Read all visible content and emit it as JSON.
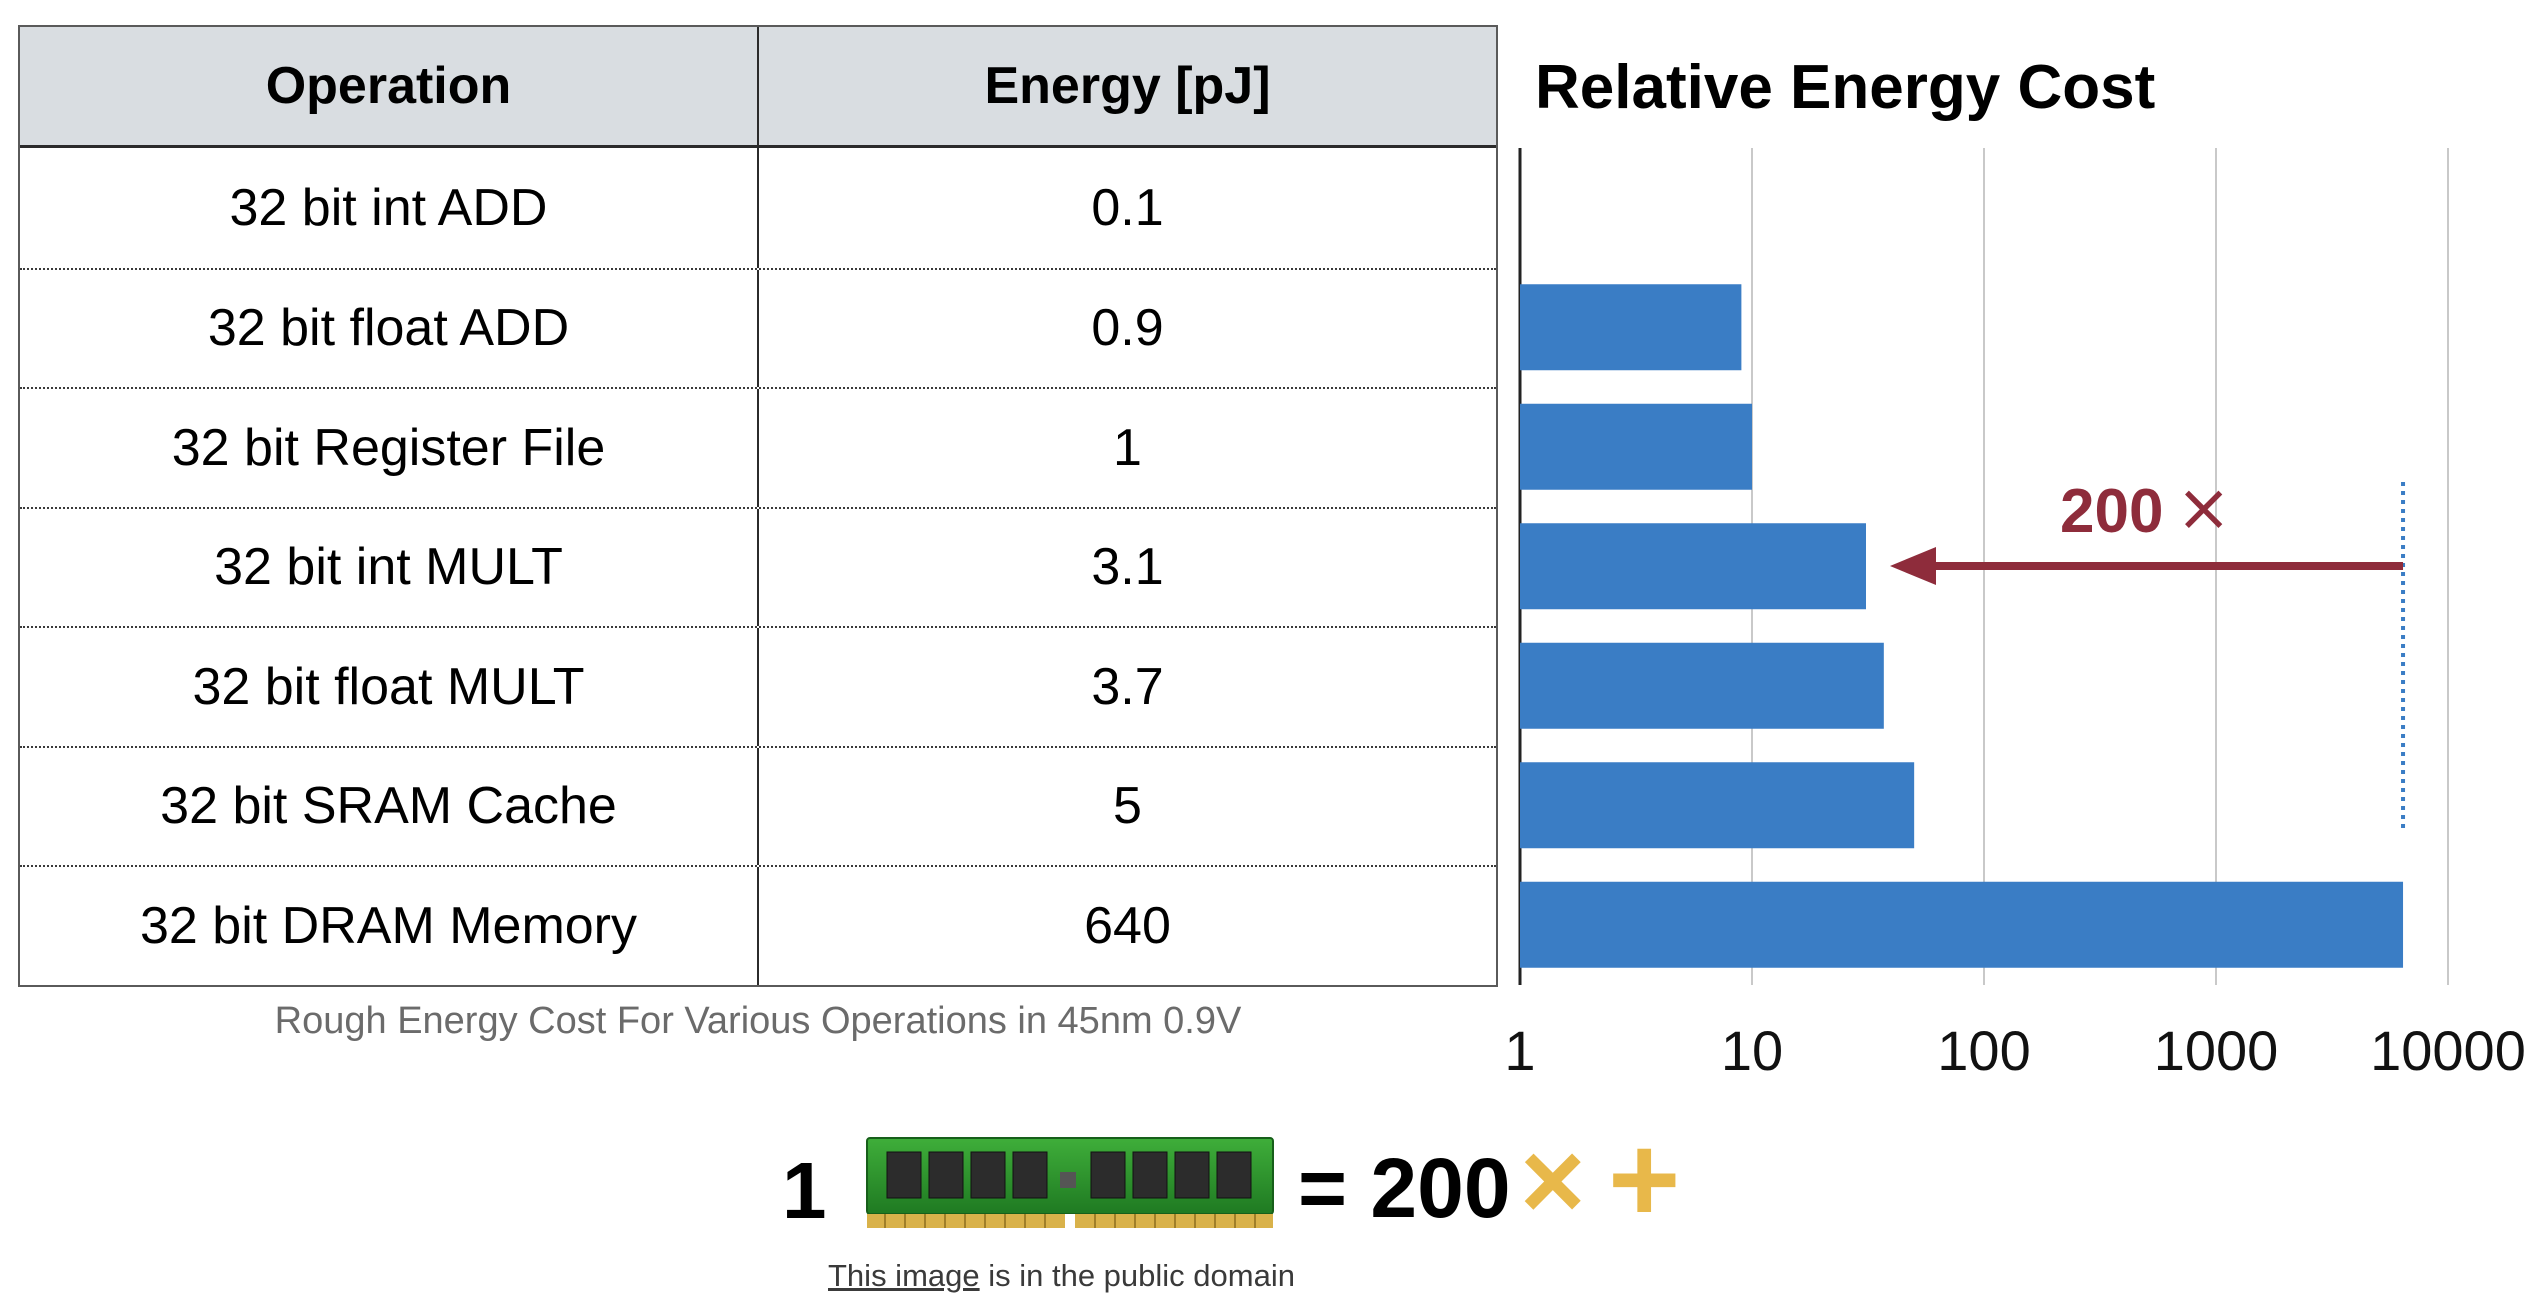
{
  "table": {
    "headers": {
      "operation": "Operation",
      "energy": "Energy [pJ]"
    },
    "rows": [
      {
        "operation": "32 bit int ADD",
        "energy": "0.1"
      },
      {
        "operation": "32 bit float ADD",
        "energy": "0.9"
      },
      {
        "operation": "32 bit Register File",
        "energy": "1"
      },
      {
        "operation": "32 bit int MULT",
        "energy": "3.1"
      },
      {
        "operation": "32 bit float MULT",
        "energy": "3.7"
      },
      {
        "operation": "32 bit SRAM Cache",
        "energy": "5"
      },
      {
        "operation": "32 bit DRAM Memory",
        "energy": "640"
      }
    ],
    "caption": "Rough Energy Cost For Various Operations in 45nm 0.9V"
  },
  "chart_data": {
    "type": "bar",
    "orientation": "horizontal",
    "title": "Relative Energy Cost",
    "xscale": "log",
    "xlim": [
      1,
      10000
    ],
    "xticks": [
      "1",
      "10",
      "100",
      "1000",
      "10000"
    ],
    "grid": true,
    "categories": [
      "32 bit int ADD",
      "32 bit float ADD",
      "32 bit Register File",
      "32 bit int MULT",
      "32 bit float MULT",
      "32 bit SRAM Cache",
      "32 bit DRAM Memory"
    ],
    "values": [
      1,
      9,
      10,
      31,
      37,
      50,
      6400
    ],
    "bar_color": "#3a7dc5",
    "annotation": {
      "text": "200",
      "symbol": "×",
      "from": 6400,
      "to": 31,
      "color": "#8e2c3b",
      "guide_color": "#3a7dc5"
    }
  },
  "equation": {
    "left": "1",
    "value": "= 200",
    "times": "×",
    "plus": "+",
    "accent_color": "#e8b84a"
  },
  "credit": {
    "link_text": "This image",
    "rest": " is in the public domain"
  }
}
